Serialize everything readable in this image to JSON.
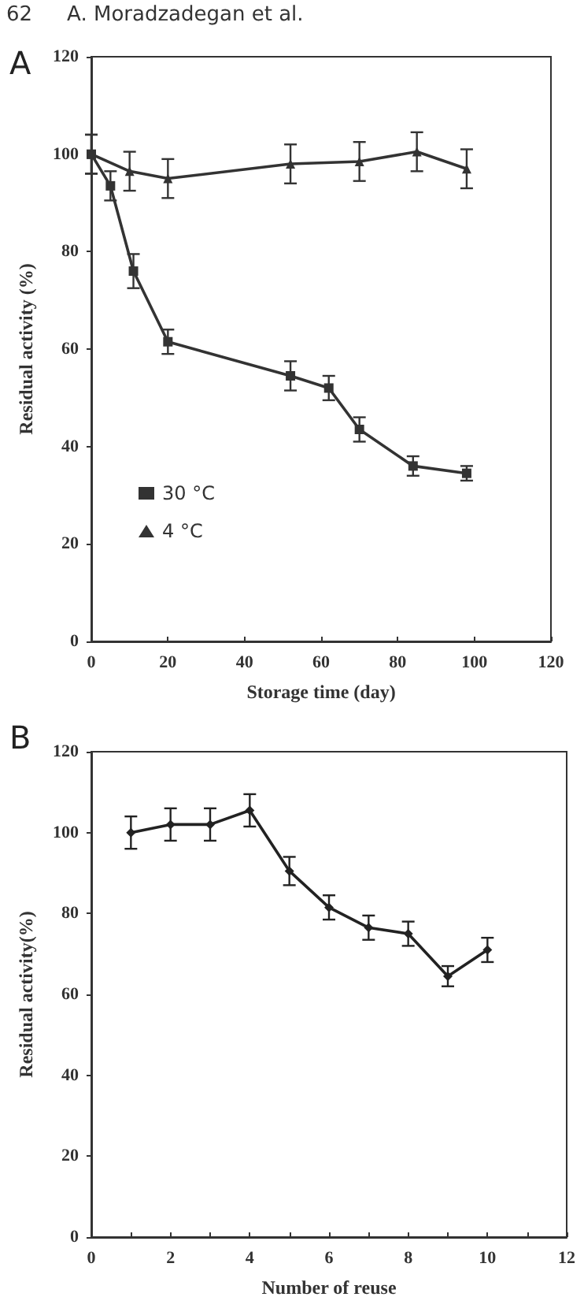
{
  "chart_data": [
    {
      "type": "line",
      "annotations": [
        "62",
        "A. Moradzadegan et al.",
        "A"
      ],
      "xlabel": "Storage time (day)",
      "ylabel": "Residual activity (%)",
      "xlim": [
        0,
        120
      ],
      "xticks": [
        0,
        20,
        40,
        60,
        80,
        100,
        120
      ],
      "ylim": [
        0,
        120
      ],
      "yticks": [
        0,
        20,
        40,
        60,
        80,
        100,
        120
      ],
      "legend": "bottom left",
      "line_style": "solid",
      "series": [
        {
          "name": "30 °C",
          "color": "#333333",
          "marker": "square",
          "x": [
            0,
            5,
            11,
            20,
            52,
            62,
            70,
            84,
            98
          ],
          "values": [
            100,
            93.5,
            76,
            61.5,
            54.5,
            52,
            43.5,
            36,
            34.5
          ],
          "errors": [
            4,
            3,
            3.5,
            2.5,
            3,
            2.5,
            2.5,
            2,
            1.5
          ]
        },
        {
          "name": "4 °C",
          "color": "#333333",
          "marker": "triangle",
          "x": [
            0,
            10,
            20,
            52,
            70,
            85,
            98
          ],
          "values": [
            100,
            96.5,
            95,
            98,
            98.5,
            100.5,
            97
          ],
          "errors": [
            4,
            4,
            4,
            4,
            4,
            4,
            4
          ]
        }
      ]
    },
    {
      "type": "line",
      "annotations": [
        "B"
      ],
      "xlabel": "Number of reuse",
      "ylabel": "Residual activity(%)",
      "xlim": [
        0,
        12
      ],
      "xticks": [
        0,
        {
          "value": 1,
          "label": null
        },
        2,
        {
          "value": 3,
          "label": null
        },
        4,
        {
          "value": 5,
          "label": null
        },
        6,
        {
          "value": 7,
          "label": null
        },
        8,
        {
          "value": 9,
          "label": null
        },
        10,
        {
          "value": 11,
          "label": null
        },
        12
      ],
      "ylim": [
        0,
        120
      ],
      "yticks": [
        0,
        20,
        40,
        60,
        80,
        100,
        120
      ],
      "line_style": "solid",
      "series": [
        {
          "color": "#222222",
          "marker": "diamond",
          "x": [
            1,
            2,
            3,
            4,
            5,
            6,
            7,
            8,
            9,
            10
          ],
          "values": [
            100,
            102,
            102,
            105.5,
            90.5,
            81.5,
            76.5,
            75,
            64.5,
            71
          ],
          "errors": [
            4,
            4,
            4,
            4,
            3.5,
            3,
            3,
            3,
            2.5,
            3
          ]
        }
      ]
    }
  ]
}
